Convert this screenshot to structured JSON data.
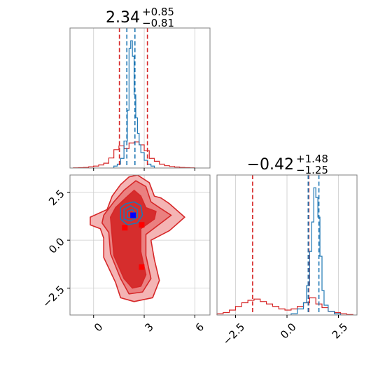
{
  "chart_data": {
    "type": "corner",
    "grid": true,
    "colors": {
      "posterior_a": "#d62728",
      "posterior_b": "#1f77b4",
      "truth_marker": "#0000ff",
      "sample_marker": "#ff0000"
    },
    "titles": [
      {
        "value": "2.34",
        "plus": "+0.85",
        "minus": "−0.81"
      },
      {
        "value": "−0.42",
        "plus": "+1.48",
        "minus": "−1.25"
      }
    ],
    "axes": {
      "x0": {
        "range": [
          -1.4,
          6.9
        ],
        "ticks": [
          0,
          3,
          6
        ],
        "tick_labels": [
          "0",
          "3",
          "6"
        ]
      },
      "x1": {
        "range": [
          -3.4,
          3.4
        ],
        "ticks": [
          -2.5,
          0.0,
          2.5
        ],
        "tick_labels": [
          "−2.5",
          "0.0",
          "2.5"
        ]
      },
      "y1": {
        "range": [
          -3.9,
          3.4
        ],
        "ticks": [
          -2.5,
          0.0,
          2.5
        ],
        "tick_labels": [
          "−2.5",
          "0.0",
          "2.5"
        ]
      }
    },
    "hist_x0": {
      "quantiles_a": [
        1.53,
        3.19
      ],
      "quantiles_b": [
        1.97,
        2.45
      ],
      "series": [
        {
          "color": "red",
          "edges": [
            -1.2,
            -0.9,
            -0.6,
            -0.3,
            0.0,
            0.3,
            0.6,
            0.9,
            1.2,
            1.5,
            1.8,
            2.1,
            2.4,
            2.7,
            3.0,
            3.3,
            3.6,
            3.9,
            4.2,
            4.5,
            4.8,
            5.1,
            5.4,
            5.7,
            6.0
          ],
          "values": [
            0.1,
            0.2,
            0.3,
            0.6,
            1.0,
            1.6,
            2.5,
            5.2,
            9.5,
            11.5,
            10.0,
            13.0,
            13.5,
            12.0,
            9.0,
            5.0,
            3.5,
            2.0,
            1.2,
            0.8,
            0.5,
            0.3,
            0.2,
            0.1
          ]
        },
        {
          "color": "blue",
          "edges": [
            1.2,
            1.4,
            1.6,
            1.8,
            2.0,
            2.1,
            2.2,
            2.3,
            2.4,
            2.5,
            2.6,
            2.7,
            2.8,
            3.0,
            3.2,
            3.4,
            3.6
          ],
          "values": [
            1.0,
            2.0,
            5.0,
            14.0,
            30.0,
            62.0,
            66.0,
            58.0,
            38.0,
            26.0,
            18.0,
            12.0,
            8.0,
            4.0,
            2.0,
            1.0
          ]
        }
      ]
    },
    "hist_x1": {
      "quantiles_a": [
        -1.67,
        1.06
      ],
      "quantiles_b": [
        1.03,
        1.55
      ],
      "series": [
        {
          "color": "red",
          "edges": [
            -3.4,
            -3.1,
            -2.8,
            -2.5,
            -2.2,
            -1.9,
            -1.6,
            -1.3,
            -1.0,
            -0.7,
            -0.4,
            -0.1,
            0.2,
            0.5,
            0.8,
            1.1,
            1.4,
            1.7,
            2.0,
            2.3,
            2.6,
            2.9,
            3.2
          ],
          "values": [
            0.5,
            1.0,
            2.0,
            3.5,
            5.0,
            6.0,
            6.5,
            5.5,
            4.5,
            3.5,
            2.5,
            2.0,
            2.5,
            3.5,
            5.0,
            7.0,
            4.5,
            3.0,
            1.5,
            1.0,
            0.5,
            0.2
          ]
        },
        {
          "color": "blue",
          "edges": [
            0.2,
            0.5,
            0.8,
            0.95,
            1.1,
            1.2,
            1.3,
            1.4,
            1.5,
            1.6,
            1.7,
            1.8,
            2.0,
            2.3,
            2.6
          ],
          "values": [
            0.5,
            2.5,
            5.0,
            12.0,
            26.0,
            38.0,
            52.0,
            48.0,
            40.0,
            24.0,
            10.0,
            4.0,
            1.5,
            0.5
          ]
        }
      ]
    },
    "scatter_2d": {
      "contour_a": {
        "levels": [
          [
            [
              -0.2,
              0.8
            ],
            [
              0.4,
              0.6
            ],
            [
              0.6,
              0.1
            ],
            [
              0.6,
              -0.9
            ],
            [
              1.3,
              -2.2
            ],
            [
              1.6,
              -3.0
            ],
            [
              2.4,
              -3.2
            ],
            [
              3.5,
              -3.0
            ],
            [
              3.9,
              -2.1
            ],
            [
              3.6,
              -1.0
            ],
            [
              3.4,
              0.0
            ],
            [
              4.5,
              0.5
            ],
            [
              5.4,
              1.2
            ],
            [
              4.5,
              1.9
            ],
            [
              4.0,
              2.2
            ],
            [
              3.6,
              2.3
            ],
            [
              3.3,
              3.0
            ],
            [
              2.6,
              3.4
            ],
            [
              2.1,
              3.3
            ],
            [
              1.6,
              2.9
            ],
            [
              1.1,
              2.3
            ],
            [
              0.8,
              1.6
            ],
            [
              -0.2,
              1.2
            ]
          ],
          [
            [
              0.5,
              0.9
            ],
            [
              0.9,
              0.4
            ],
            [
              1.0,
              -0.7
            ],
            [
              1.6,
              -2.0
            ],
            [
              2.1,
              -2.8
            ],
            [
              2.9,
              -2.7
            ],
            [
              3.4,
              -2.0
            ],
            [
              3.1,
              -0.8
            ],
            [
              3.1,
              0.3
            ],
            [
              4.0,
              0.9
            ],
            [
              4.6,
              1.3
            ],
            [
              3.9,
              1.7
            ],
            [
              3.4,
              2.0
            ],
            [
              3.1,
              2.8
            ],
            [
              2.5,
              3.1
            ],
            [
              1.8,
              2.6
            ],
            [
              1.2,
              2.0
            ],
            [
              0.6,
              1.3
            ]
          ],
          [
            [
              1.0,
              1.2
            ],
            [
              1.1,
              0.2
            ],
            [
              1.2,
              -0.8
            ],
            [
              1.8,
              -2.0
            ],
            [
              2.3,
              -2.5
            ],
            [
              2.8,
              -2.4
            ],
            [
              3.1,
              -1.8
            ],
            [
              2.8,
              -0.6
            ],
            [
              2.8,
              0.6
            ],
            [
              3.6,
              1.1
            ],
            [
              3.7,
              1.5
            ],
            [
              3.1,
              1.7
            ],
            [
              2.8,
              2.3
            ],
            [
              2.4,
              2.6
            ],
            [
              1.9,
              2.2
            ],
            [
              1.3,
              1.7
            ]
          ]
        ]
      },
      "contour_b": {
        "levels": [
          [
            [
              1.6,
              1.7
            ],
            [
              1.6,
              1.1
            ],
            [
              2.0,
              0.8
            ],
            [
              2.6,
              0.9
            ],
            [
              2.9,
              1.3
            ],
            [
              2.8,
              1.8
            ],
            [
              2.4,
              2.0
            ],
            [
              1.9,
              1.9
            ]
          ],
          [
            [
              1.8,
              1.6
            ],
            [
              1.8,
              1.1
            ],
            [
              2.2,
              1.0
            ],
            [
              2.6,
              1.2
            ],
            [
              2.6,
              1.6
            ],
            [
              2.2,
              1.8
            ]
          ],
          [
            [
              2.0,
              1.5
            ],
            [
              2.0,
              1.2
            ],
            [
              2.3,
              1.15
            ],
            [
              2.5,
              1.35
            ],
            [
              2.3,
              1.6
            ]
          ]
        ]
      },
      "blue_square": [
        2.34,
        1.3
      ],
      "red_squares": [
        [
          1.85,
          0.65
        ],
        [
          2.85,
          0.8
        ],
        [
          2.85,
          -1.4
        ]
      ]
    }
  }
}
